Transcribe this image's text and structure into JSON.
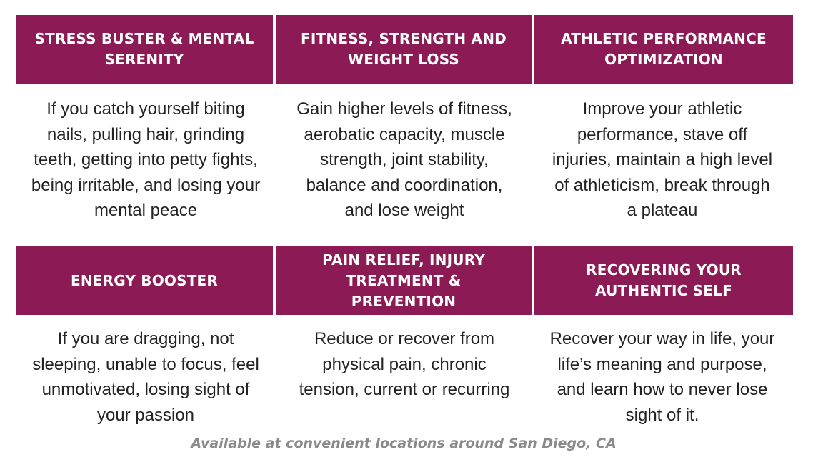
{
  "cards": [
    {
      "title": "STRESS BUSTER & MENTAL SERENITY",
      "description": "If you catch yourself biting nails, pulling hair, grinding teeth, getting into petty fights, being irritable, and losing your mental peace"
    },
    {
      "title": "FITNESS, STRENGTH AND WEIGHT LOSS",
      "description": "Gain higher levels of fitness, aerobatic capacity, muscle strength, joint stability, balance and coordination, and lose weight"
    },
    {
      "title": "ATHLETIC PERFORMANCE OPTIMIZATION",
      "description": "Improve your athletic performance, stave off injuries, maintain a high level of athleticism, break through a plateau"
    },
    {
      "title": "ENERGY BOOSTER",
      "description": "If you are dragging, not sleeping, unable to focus, feel unmotivated, losing sight of your passion"
    },
    {
      "title": "PAIN RELIEF, INJURY TREATMENT & PREVENTION",
      "description": "Reduce or recover from physical pain, chronic tension, current or recurring"
    },
    {
      "title": "RECOVERING YOUR AUTHENTIC SELF",
      "description": "Recover your way in life, your life’s meaning and purpose, and learn how to never lose sight of it."
    }
  ],
  "footer": {
    "text": "Available at convenient locations around San Diego, CA"
  },
  "colors": {
    "header_bg": "#8c1b55",
    "header_text": "#ffffff",
    "body_text": "#222222",
    "footer_text": "#8a8a8a"
  }
}
